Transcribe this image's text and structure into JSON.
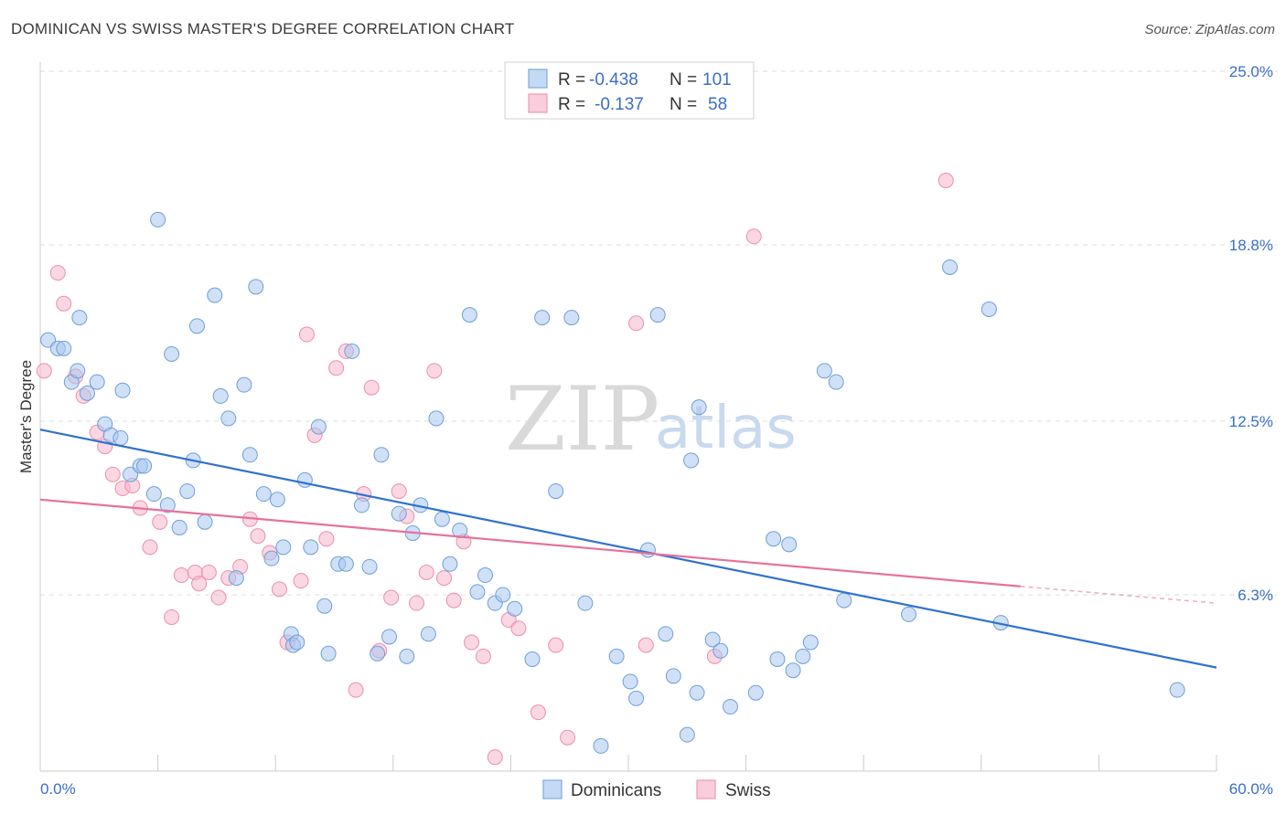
{
  "title": "DOMINICAN VS SWISS MASTER'S DEGREE CORRELATION CHART",
  "source": "Source: ZipAtlas.com",
  "watermark": {
    "zip": "ZIP",
    "atlas": "atlas"
  },
  "colors": {
    "blue_fill": "#a9c7ee",
    "blue_stroke": "#6f9fd8",
    "blue_line": "#2f72d0",
    "pink_fill": "#f6b7cb",
    "pink_stroke": "#eb8fae",
    "pink_line": "#e8709a",
    "grid": "#dddddd",
    "label": "#3a6fc4"
  },
  "legend": {
    "row1": {
      "r_label": "R =",
      "r_value": "-0.438",
      "n_label": "N =",
      "n_value": "101"
    },
    "row2": {
      "r_label": "R =",
      "r_value": "-0.137",
      "n_label": "N =",
      "n_value": "58"
    }
  },
  "bottom_legend": {
    "series1": "Dominicans",
    "series2": "Swiss"
  },
  "chart_data": {
    "type": "scatter",
    "title": "DOMINICAN VS SWISS MASTER'S DEGREE CORRELATION CHART",
    "xlabel": "",
    "ylabel": "Master's Degree",
    "xlim": [
      0,
      60
    ],
    "ylim": [
      0,
      25
    ],
    "x_tick_labels": [
      "0.0%",
      "60.0%"
    ],
    "y_tick_labels": [
      "25.0%",
      "18.8%",
      "12.5%",
      "6.3%"
    ],
    "y_ticks": [
      25.0,
      18.8,
      12.5,
      6.3
    ],
    "series": [
      {
        "name": "Dominicans",
        "r": -0.438,
        "n": 101,
        "trend": {
          "x0": 0,
          "y0": 12.2,
          "x1": 60,
          "y1": 3.7
        },
        "points": [
          [
            0.4,
            15.4
          ],
          [
            0.9,
            15.1
          ],
          [
            1.2,
            15.1
          ],
          [
            1.6,
            13.9
          ],
          [
            1.9,
            14.3
          ],
          [
            2.0,
            16.2
          ],
          [
            2.4,
            13.5
          ],
          [
            2.9,
            13.9
          ],
          [
            3.3,
            12.4
          ],
          [
            3.6,
            12.0
          ],
          [
            4.1,
            11.9
          ],
          [
            4.2,
            13.6
          ],
          [
            4.6,
            10.6
          ],
          [
            5.1,
            10.9
          ],
          [
            5.3,
            10.9
          ],
          [
            5.8,
            9.9
          ],
          [
            6.0,
            19.7
          ],
          [
            6.5,
            9.5
          ],
          [
            6.7,
            14.9
          ],
          [
            7.1,
            8.7
          ],
          [
            7.5,
            10.0
          ],
          [
            7.8,
            11.1
          ],
          [
            8.0,
            15.9
          ],
          [
            8.4,
            8.9
          ],
          [
            8.9,
            17.0
          ],
          [
            9.2,
            13.4
          ],
          [
            9.6,
            12.6
          ],
          [
            10.0,
            6.9
          ],
          [
            10.4,
            13.8
          ],
          [
            10.7,
            11.3
          ],
          [
            11.0,
            17.3
          ],
          [
            11.4,
            9.9
          ],
          [
            11.8,
            7.6
          ],
          [
            12.1,
            9.7
          ],
          [
            12.4,
            8.0
          ],
          [
            12.8,
            4.9
          ],
          [
            12.9,
            4.5
          ],
          [
            13.1,
            4.6
          ],
          [
            13.5,
            10.4
          ],
          [
            13.8,
            8.0
          ],
          [
            14.2,
            12.3
          ],
          [
            14.5,
            5.9
          ],
          [
            14.7,
            4.2
          ],
          [
            15.2,
            7.4
          ],
          [
            15.6,
            7.4
          ],
          [
            15.9,
            15.0
          ],
          [
            16.4,
            9.5
          ],
          [
            16.8,
            7.3
          ],
          [
            17.2,
            4.2
          ],
          [
            17.4,
            11.3
          ],
          [
            17.8,
            4.8
          ],
          [
            18.3,
            9.2
          ],
          [
            18.7,
            4.1
          ],
          [
            19.0,
            8.5
          ],
          [
            19.4,
            9.5
          ],
          [
            19.8,
            4.9
          ],
          [
            20.2,
            12.6
          ],
          [
            20.5,
            9.0
          ],
          [
            20.9,
            7.4
          ],
          [
            21.4,
            8.6
          ],
          [
            21.9,
            16.3
          ],
          [
            22.3,
            6.4
          ],
          [
            22.7,
            7.0
          ],
          [
            23.2,
            6.0
          ],
          [
            23.6,
            6.3
          ],
          [
            24.2,
            5.8
          ],
          [
            25.1,
            4.0
          ],
          [
            25.6,
            16.2
          ],
          [
            26.3,
            10.0
          ],
          [
            27.1,
            16.2
          ],
          [
            27.8,
            6.0
          ],
          [
            28.6,
            0.9
          ],
          [
            29.4,
            4.1
          ],
          [
            30.1,
            3.2
          ],
          [
            30.4,
            2.6
          ],
          [
            31.0,
            7.9
          ],
          [
            31.5,
            16.3
          ],
          [
            31.9,
            4.9
          ],
          [
            32.3,
            3.4
          ],
          [
            33.0,
            1.3
          ],
          [
            33.5,
            2.8
          ],
          [
            33.6,
            13.0
          ],
          [
            33.2,
            11.1
          ],
          [
            34.3,
            4.7
          ],
          [
            34.7,
            4.3
          ],
          [
            35.2,
            2.3
          ],
          [
            36.5,
            2.8
          ],
          [
            37.4,
            8.3
          ],
          [
            37.6,
            4.0
          ],
          [
            38.2,
            8.1
          ],
          [
            38.4,
            3.6
          ],
          [
            38.9,
            4.1
          ],
          [
            39.3,
            4.6
          ],
          [
            40.0,
            14.3
          ],
          [
            40.6,
            13.9
          ],
          [
            41.0,
            6.1
          ],
          [
            44.3,
            5.6
          ],
          [
            46.4,
            18.0
          ],
          [
            48.4,
            16.5
          ],
          [
            49.0,
            5.3
          ],
          [
            58.0,
            2.9
          ]
        ]
      },
      {
        "name": "Swiss",
        "r": -0.137,
        "n": 58,
        "trend": {
          "x0": 0,
          "y0": 9.7,
          "x1": 50,
          "y1": 6.6,
          "dashed_to_x": 60,
          "dashed_to_y": 6.0
        },
        "points": [
          [
            0.2,
            14.3
          ],
          [
            0.9,
            17.8
          ],
          [
            1.2,
            16.7
          ],
          [
            1.8,
            14.1
          ],
          [
            2.2,
            13.4
          ],
          [
            2.9,
            12.1
          ],
          [
            3.3,
            11.6
          ],
          [
            3.7,
            10.6
          ],
          [
            4.2,
            10.1
          ],
          [
            4.7,
            10.2
          ],
          [
            5.1,
            9.4
          ],
          [
            5.6,
            8.0
          ],
          [
            6.1,
            8.9
          ],
          [
            6.7,
            5.5
          ],
          [
            7.2,
            7.0
          ],
          [
            7.9,
            7.1
          ],
          [
            8.1,
            6.7
          ],
          [
            8.6,
            7.1
          ],
          [
            9.1,
            6.2
          ],
          [
            9.6,
            6.9
          ],
          [
            10.2,
            7.3
          ],
          [
            10.7,
            9.0
          ],
          [
            11.1,
            8.4
          ],
          [
            11.7,
            7.8
          ],
          [
            12.2,
            6.5
          ],
          [
            12.6,
            4.6
          ],
          [
            13.3,
            6.8
          ],
          [
            13.6,
            15.6
          ],
          [
            14.0,
            12.0
          ],
          [
            14.6,
            8.3
          ],
          [
            15.1,
            14.4
          ],
          [
            15.6,
            15.0
          ],
          [
            16.1,
            2.9
          ],
          [
            16.5,
            9.9
          ],
          [
            16.9,
            13.7
          ],
          [
            17.3,
            4.3
          ],
          [
            17.9,
            6.2
          ],
          [
            18.3,
            10.0
          ],
          [
            18.7,
            9.1
          ],
          [
            19.2,
            6.0
          ],
          [
            19.7,
            7.1
          ],
          [
            20.1,
            14.3
          ],
          [
            20.6,
            6.9
          ],
          [
            21.1,
            6.1
          ],
          [
            21.6,
            8.2
          ],
          [
            22.0,
            4.6
          ],
          [
            22.6,
            4.1
          ],
          [
            23.2,
            0.5
          ],
          [
            23.9,
            5.4
          ],
          [
            24.4,
            5.1
          ],
          [
            25.4,
            2.1
          ],
          [
            26.3,
            4.5
          ],
          [
            26.9,
            1.2
          ],
          [
            30.4,
            16.0
          ],
          [
            30.9,
            4.5
          ],
          [
            34.4,
            4.1
          ],
          [
            36.4,
            19.1
          ],
          [
            46.2,
            21.1
          ]
        ]
      }
    ]
  }
}
